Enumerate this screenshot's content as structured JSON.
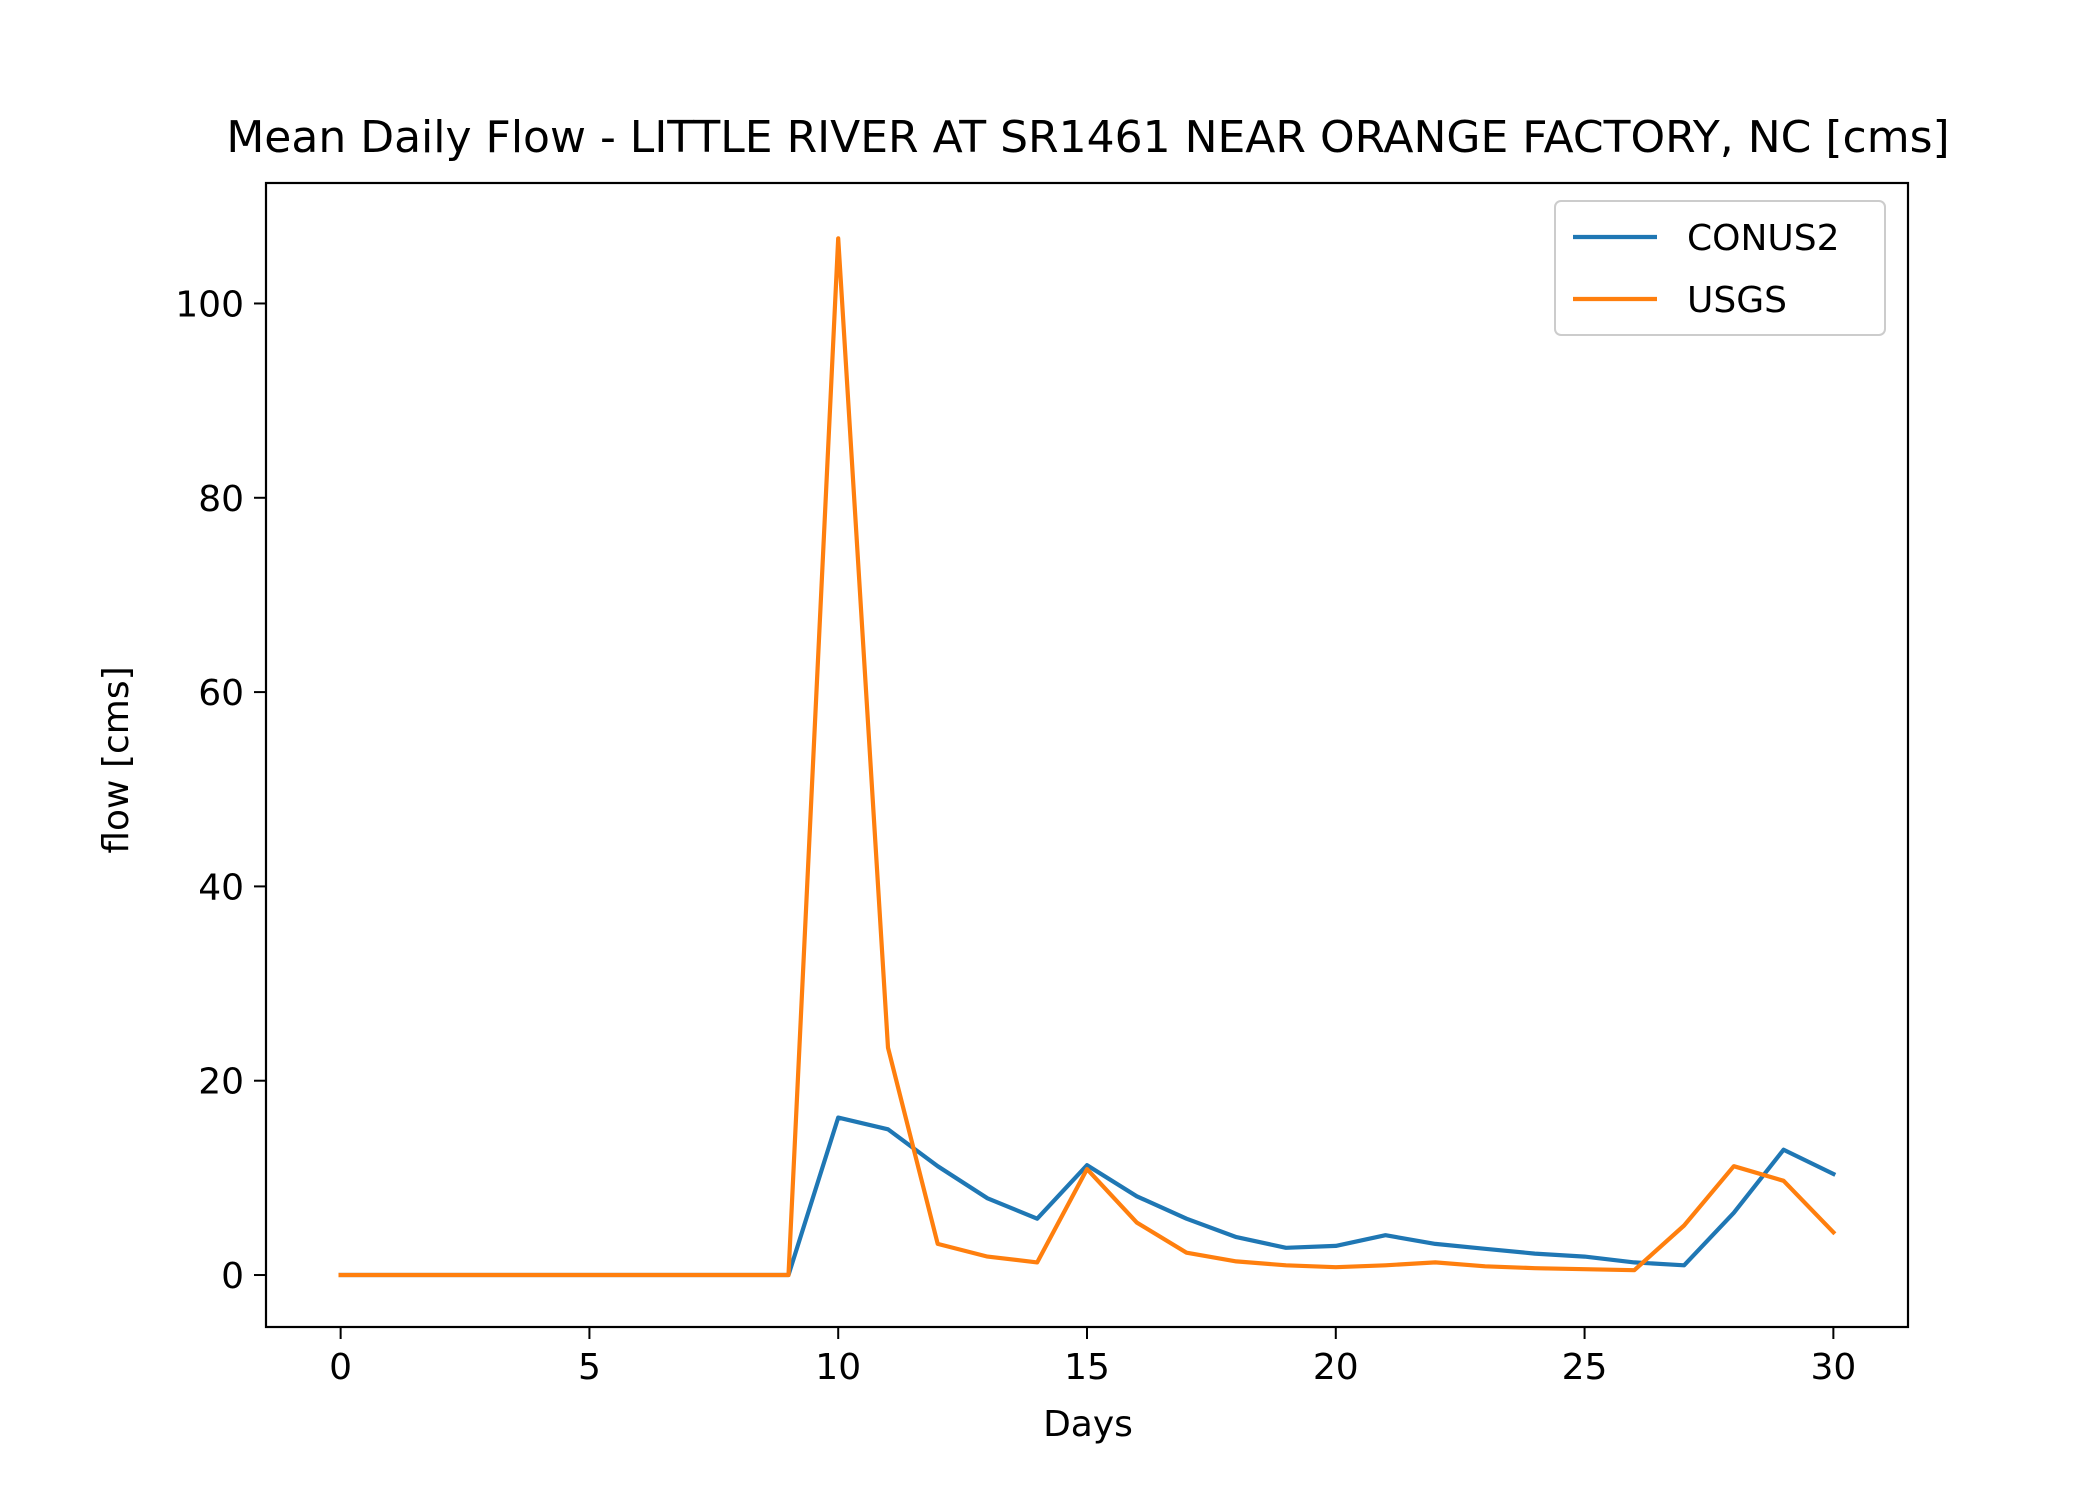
{
  "chart_data": {
    "type": "line",
    "title": "Mean Daily Flow - LITTLE RIVER AT SR1461 NEAR ORANGE FACTORY, NC [cms]",
    "xlabel": "Days",
    "ylabel": "flow [cms]",
    "xlim": [
      -1.5,
      31.5
    ],
    "ylim": [
      -5.35,
      112.4
    ],
    "xticks": [
      0,
      5,
      10,
      15,
      20,
      25,
      30
    ],
    "yticks": [
      0,
      20,
      40,
      60,
      80,
      100
    ],
    "grid": false,
    "legend_position": "top-right",
    "x": [
      0,
      1,
      2,
      3,
      4,
      5,
      6,
      7,
      8,
      9,
      10,
      11,
      12,
      13,
      14,
      15,
      16,
      17,
      18,
      19,
      20,
      21,
      22,
      23,
      24,
      25,
      26,
      27,
      28,
      29,
      30
    ],
    "series": [
      {
        "name": "CONUS2",
        "color": "#1f77b4",
        "values": [
          0,
          0,
          0,
          0,
          0,
          0,
          0,
          0,
          0,
          0,
          16.2,
          15.0,
          11.2,
          7.9,
          5.8,
          11.3,
          8.1,
          5.8,
          3.9,
          2.8,
          3.0,
          4.1,
          3.2,
          2.7,
          2.2,
          1.9,
          1.3,
          1.0,
          6.4,
          12.9,
          10.4
        ]
      },
      {
        "name": "USGS",
        "color": "#ff7f0e",
        "values": [
          0,
          0,
          0,
          0,
          0,
          0,
          0,
          0,
          0,
          0,
          106.7,
          23.4,
          3.2,
          1.9,
          1.3,
          10.9,
          5.4,
          2.3,
          1.4,
          1.0,
          0.8,
          1.0,
          1.3,
          0.9,
          0.7,
          0.6,
          0.5,
          5.1,
          11.2,
          9.7,
          4.4
        ]
      }
    ]
  }
}
